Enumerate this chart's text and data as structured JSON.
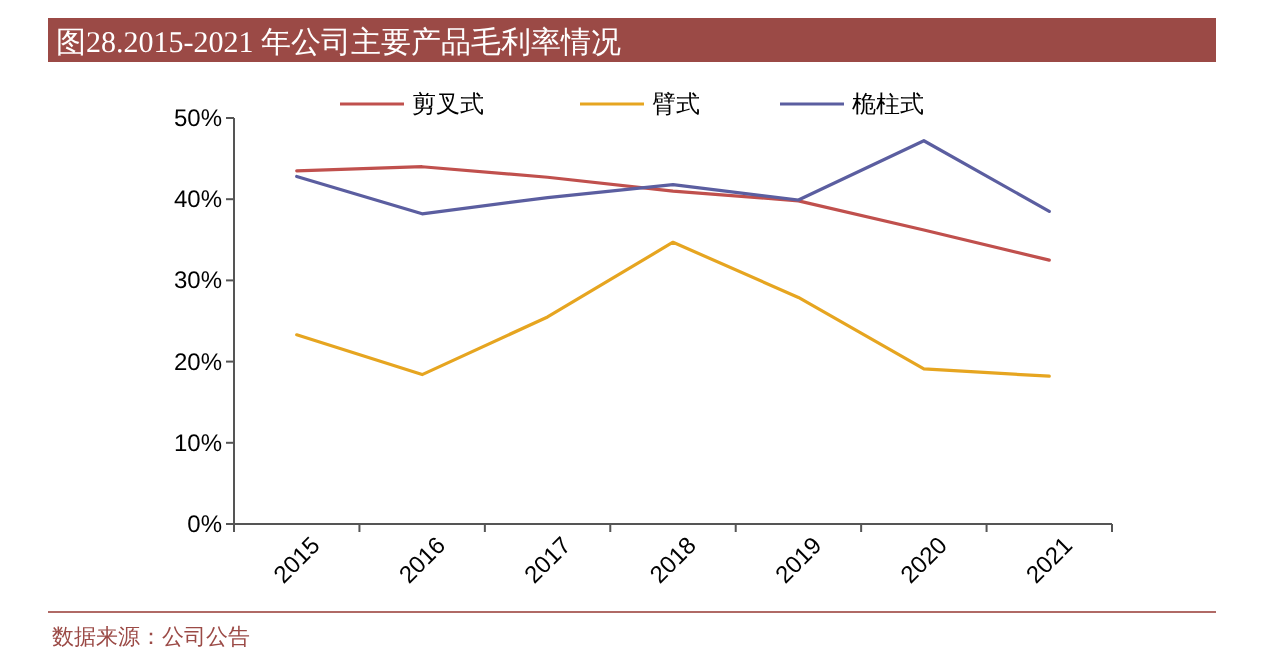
{
  "chart_data": {
    "type": "line",
    "title": "图28.2015-2021 年公司主要产品毛利率情况",
    "categories": [
      "2015",
      "2016",
      "2017",
      "2018",
      "2019",
      "2020",
      "2021"
    ],
    "series": [
      {
        "name": "剪叉式",
        "color": "#c0504d",
        "values": [
          43.5,
          44.0,
          42.7,
          41.0,
          39.8,
          36.2,
          32.5
        ]
      },
      {
        "name": "臂式",
        "color": "#e6a520",
        "values": [
          23.3,
          18.4,
          25.5,
          34.7,
          27.9,
          19.1,
          18.2
        ]
      },
      {
        "name": "桅柱式",
        "color": "#5b5ea0",
        "values": [
          42.8,
          38.2,
          40.2,
          41.8,
          39.9,
          47.2,
          38.5
        ]
      }
    ],
    "ylim": [
      0,
      50
    ],
    "yticks": [
      {
        "value": 0,
        "label": "0%"
      },
      {
        "value": 10,
        "label": "10%"
      },
      {
        "value": 20,
        "label": "20%"
      },
      {
        "value": 30,
        "label": "30%"
      },
      {
        "value": 40,
        "label": "40%"
      },
      {
        "value": 50,
        "label": "50%"
      }
    ],
    "legend": "top",
    "grid": false,
    "marker": "none",
    "line_style": "solid",
    "annotations": [
      "数据来源：公司公告"
    ]
  }
}
